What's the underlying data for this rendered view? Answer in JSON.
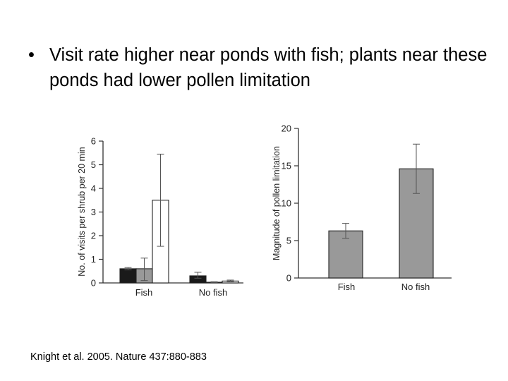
{
  "slide": {
    "bullet_char": "•",
    "bullet_text": "Visit rate higher near ponds with fish;  plants near these ponds had lower pollen limitation",
    "citation": "Knight et al. 2005.  Nature 437:880-883"
  },
  "colors": {
    "dark": "#1a1a1a",
    "gray": "#999999",
    "white": "#ffffff",
    "axis": "#333333"
  },
  "chart_data": [
    {
      "type": "bar",
      "ylabel": "No. of visits per shrub per 20 min",
      "categories": [
        "Fish",
        "No fish"
      ],
      "ylim": [
        0,
        6
      ],
      "yticks": [
        0,
        1,
        2,
        3,
        4,
        5,
        6
      ],
      "series": [
        {
          "fill": "dark",
          "values": [
            0.6,
            0.3
          ],
          "err_low": [
            0.55,
            0.2
          ],
          "err_high": [
            0.65,
            0.45
          ]
        },
        {
          "fill": "gray",
          "values": [
            0.6,
            0.03
          ],
          "err_low": [
            0.1,
            0.02
          ],
          "err_high": [
            1.05,
            0.05
          ]
        },
        {
          "fill": "white",
          "values": [
            3.5,
            0.08
          ],
          "err_low": [
            1.55,
            0.05
          ],
          "err_high": [
            5.45,
            0.12
          ]
        }
      ]
    },
    {
      "type": "bar",
      "ylabel": "Magnitude of pollen limitation",
      "categories": [
        "Fish",
        "No fish"
      ],
      "ylim": [
        0,
        20
      ],
      "yticks": [
        0,
        5,
        10,
        15,
        20
      ],
      "series": [
        {
          "fill": "gray",
          "values": [
            6.3,
            14.6
          ],
          "err_low": [
            5.3,
            11.3
          ],
          "err_high": [
            7.3,
            17.9
          ]
        }
      ]
    }
  ]
}
